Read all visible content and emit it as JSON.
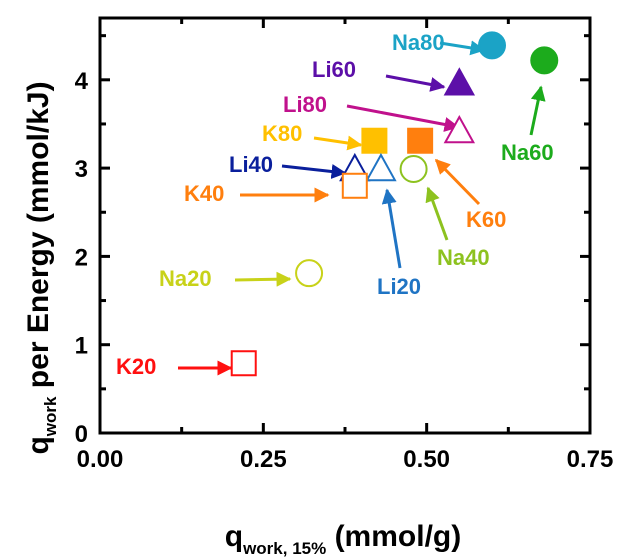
{
  "chart_data": {
    "type": "scatter",
    "xlabel_main": "q",
    "xlabel_sub": "work, 15%",
    "xlabel_unit": " (mmol/g)",
    "ylabel_main": "q",
    "ylabel_sub": "work",
    "ylabel_unit": " per Energy (mmol/kJ)",
    "xlim": [
      0,
      0.75
    ],
    "ylim": [
      0,
      4.7
    ],
    "xticks": [
      0.0,
      0.25,
      0.5,
      0.75
    ],
    "xtick_labels": [
      "0.00",
      "0.25",
      "0.50",
      "0.75"
    ],
    "yticks": [
      0,
      1,
      2,
      3,
      4
    ],
    "ytick_labels": [
      "0",
      "1",
      "2",
      "3",
      "4"
    ],
    "grid": false,
    "points": [
      {
        "label": "Na80",
        "x": 0.6,
        "y": 4.39,
        "marker": "circle",
        "filled": true,
        "color": "#1ba3c6"
      },
      {
        "label": "Na60",
        "x": 0.68,
        "y": 4.22,
        "marker": "circle",
        "filled": true,
        "color": "#1cab1c"
      },
      {
        "label": "Li60",
        "x": 0.55,
        "y": 3.96,
        "marker": "triangle",
        "filled": true,
        "color": "#5c0fa8"
      },
      {
        "label": "Li80",
        "x": 0.55,
        "y": 3.42,
        "marker": "triangle",
        "filled": false,
        "color": "#c0118c"
      },
      {
        "label": "K80",
        "x": 0.42,
        "y": 3.31,
        "marker": "square",
        "filled": true,
        "color": "#ffc000"
      },
      {
        "label": "K60",
        "x": 0.49,
        "y": 3.31,
        "marker": "square",
        "filled": true,
        "color": "#ff7f0e"
      },
      {
        "label": "Li40",
        "x": 0.39,
        "y": 2.99,
        "marker": "triangle",
        "filled": false,
        "color": "#0a1f9c"
      },
      {
        "label": "Li20",
        "x": 0.43,
        "y": 2.99,
        "marker": "triangle",
        "filled": false,
        "color": "#1f74c4"
      },
      {
        "label": "Na40",
        "x": 0.48,
        "y": 2.99,
        "marker": "circle",
        "filled": false,
        "color": "#8dc21f"
      },
      {
        "label": "K40",
        "x": 0.39,
        "y": 2.8,
        "marker": "square",
        "filled": false,
        "color": "#ff7f0e"
      },
      {
        "label": "Na20",
        "x": 0.32,
        "y": 1.81,
        "marker": "circle",
        "filled": false,
        "color": "#c8d219"
      },
      {
        "label": "K20",
        "x": 0.22,
        "y": 0.79,
        "marker": "square",
        "filled": false,
        "color": "#ff1010"
      }
    ]
  }
}
